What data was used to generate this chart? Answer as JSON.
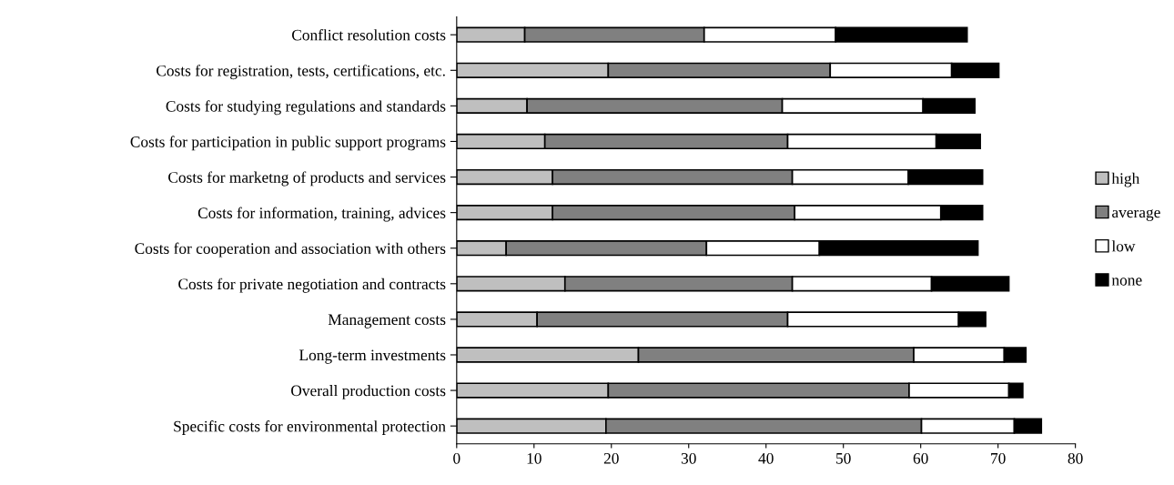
{
  "chart_data": {
    "type": "bar",
    "orientation": "horizontal",
    "stacked": true,
    "categories": [
      "Conflict resolution costs",
      "Costs for registration, tests, certifications, etc.",
      "Costs for studying regulations and standards",
      "Costs for participation in public support programs",
      "Costs for marketng of products and services",
      "Costs for information, training, advices",
      "Costs for cooperation and association with others",
      "Costs for private negotiation and contracts",
      "Management costs",
      "Long-term investments",
      "Overall production costs",
      "Specific costs for environmental protection"
    ],
    "series": [
      {
        "name": "high",
        "color": "#bfbfbf",
        "values": [
          8.8,
          19.6,
          9.1,
          11.4,
          12.4,
          12.4,
          6.4,
          14,
          10.4,
          23.5,
          19.6,
          19.3
        ]
      },
      {
        "name": "average",
        "color": "#808080",
        "values": [
          23.2,
          28.7,
          33,
          31.4,
          31,
          31.3,
          25.9,
          29.4,
          32.4,
          35.6,
          38.9,
          40.8
        ]
      },
      {
        "name": "low",
        "color": "#ffffff",
        "values": [
          17,
          15.7,
          18.2,
          19.2,
          15,
          18.9,
          14.6,
          18,
          22.1,
          11.7,
          12.9,
          12
        ]
      },
      {
        "name": "none",
        "color": "#000000",
        "values": [
          17,
          6.1,
          6.7,
          5.7,
          9.6,
          5.4,
          20.5,
          10,
          3.5,
          2.8,
          1.8,
          3.5
        ]
      }
    ],
    "xlim": [
      0,
      80
    ],
    "xticks": [
      0,
      10,
      20,
      30,
      40,
      50,
      60,
      70,
      80
    ],
    "grid": false,
    "legend": "right"
  }
}
